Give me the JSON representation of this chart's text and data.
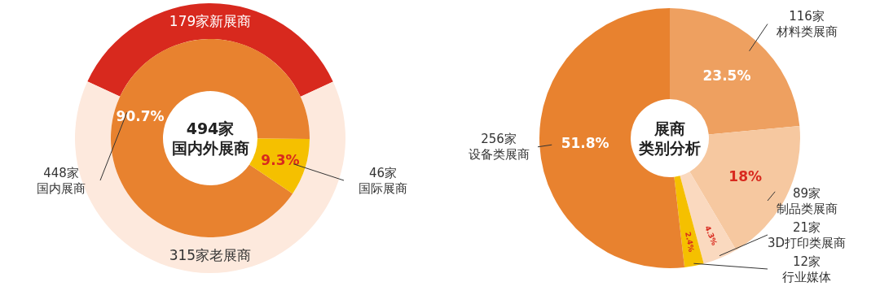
{
  "chart_data": [
    {
      "type": "donut",
      "categories": [
        "179家新展商",
        "315家老展商"
      ],
      "values": [
        179,
        315
      ],
      "colors": [
        "#d8291e",
        "#fde9dd"
      ]
    },
    {
      "type": "donut",
      "title": "494家",
      "subtitle": "国内外展商",
      "categories": [
        "448家国内展商",
        "46家国际展商"
      ],
      "values": [
        90.7,
        9.3
      ],
      "value_labels": [
        "90.7%",
        "9.3%"
      ],
      "colors": [
        "#e8822f",
        "#f5c000"
      ]
    },
    {
      "type": "donut",
      "title": "展商",
      "subtitle": "类别分析",
      "categories": [
        "116家材料类展商",
        "89家制品类展商",
        "21家3D打印类展商",
        "12家行业媒体",
        "256家设备类展商"
      ],
      "values": [
        23.5,
        18,
        4.3,
        2.4,
        51.8
      ],
      "value_labels": [
        "23.5%",
        "18%",
        "4.3%",
        "2.4%",
        "51.8%"
      ],
      "colors": [
        "#eea060",
        "#f6c8a0",
        "#fad9bf",
        "#f5c000",
        "#e8822f"
      ]
    }
  ]
}
